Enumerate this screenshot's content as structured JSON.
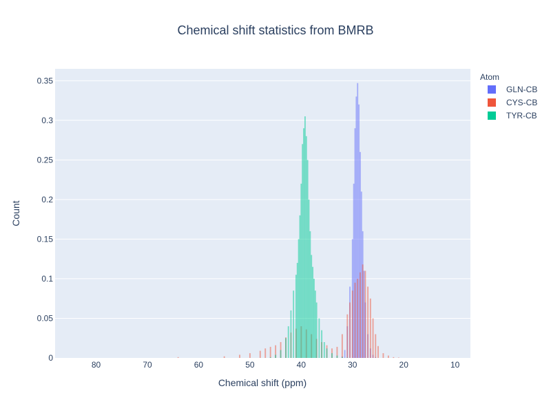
{
  "chart_data": {
    "type": "bar",
    "subtype": "overlaid-histogram",
    "title": "Chemical shift statistics from BMRB",
    "xlabel": "Chemical shift (ppm)",
    "ylabel": "Count",
    "xlim": [
      88,
      7
    ],
    "x_reversed": true,
    "ylim": [
      0,
      0.365
    ],
    "xticks": [
      80,
      70,
      60,
      50,
      40,
      30,
      20,
      10
    ],
    "yticks": [
      0,
      0.05,
      0.1,
      0.15,
      0.2,
      0.25,
      0.3,
      0.35
    ],
    "grid": true,
    "plot_bgcolor": "#e5ecf6",
    "legend": {
      "title": "Atom",
      "position": "top-right"
    },
    "bin_width": 0.25,
    "series": [
      {
        "name": "GLN-CB",
        "color": "#636efa",
        "opacity": 0.5,
        "x": [
          32.0,
          31.5,
          31.0,
          30.5,
          30.0,
          29.75,
          29.5,
          29.25,
          29.0,
          28.75,
          28.5,
          28.25,
          28.0,
          27.75,
          27.5,
          27.0,
          26.5,
          26.0,
          25.5
        ],
        "y": [
          0.002,
          0.01,
          0.04,
          0.09,
          0.15,
          0.22,
          0.29,
          0.33,
          0.347,
          0.32,
          0.26,
          0.21,
          0.16,
          0.11,
          0.07,
          0.03,
          0.012,
          0.004,
          0.001
        ]
      },
      {
        "name": "CYS-CB",
        "color": "#ef553b",
        "opacity": 0.5,
        "x": [
          64,
          55,
          52,
          50,
          48,
          47,
          46,
          45,
          44,
          43,
          42,
          41,
          40,
          39,
          38,
          37,
          36,
          35,
          34,
          33,
          32,
          31,
          30.5,
          30,
          29.5,
          29,
          28.5,
          28,
          27.5,
          27,
          26.5,
          26,
          25.5,
          25,
          24,
          23,
          22,
          21
        ],
        "y": [
          0.001,
          0.002,
          0.004,
          0.006,
          0.009,
          0.012,
          0.014,
          0.016,
          0.02,
          0.026,
          0.032,
          0.037,
          0.04,
          0.036,
          0.03,
          0.024,
          0.02,
          0.016,
          0.012,
          0.014,
          0.03,
          0.055,
          0.07,
          0.085,
          0.095,
          0.1,
          0.108,
          0.118,
          0.11,
          0.09,
          0.075,
          0.05,
          0.03,
          0.015,
          0.006,
          0.003,
          0.001,
          0.0005
        ]
      },
      {
        "name": "TYR-CB",
        "color": "#00cc96",
        "opacity": 0.5,
        "x": [
          46,
          45,
          44,
          43,
          42.5,
          42,
          41.5,
          41,
          40.75,
          40.5,
          40.25,
          40,
          39.75,
          39.5,
          39.25,
          39,
          38.75,
          38.5,
          38.25,
          38,
          37.75,
          37.5,
          37.25,
          37,
          36.5,
          36,
          35.5,
          35,
          34,
          33,
          32,
          31
        ],
        "y": [
          0.001,
          0.004,
          0.01,
          0.025,
          0.04,
          0.06,
          0.085,
          0.105,
          0.12,
          0.15,
          0.18,
          0.22,
          0.27,
          0.29,
          0.305,
          0.28,
          0.25,
          0.2,
          0.16,
          0.13,
          0.115,
          0.1,
          0.085,
          0.07,
          0.05,
          0.035,
          0.02,
          0.012,
          0.006,
          0.003,
          0.001,
          0.0005
        ]
      }
    ]
  }
}
